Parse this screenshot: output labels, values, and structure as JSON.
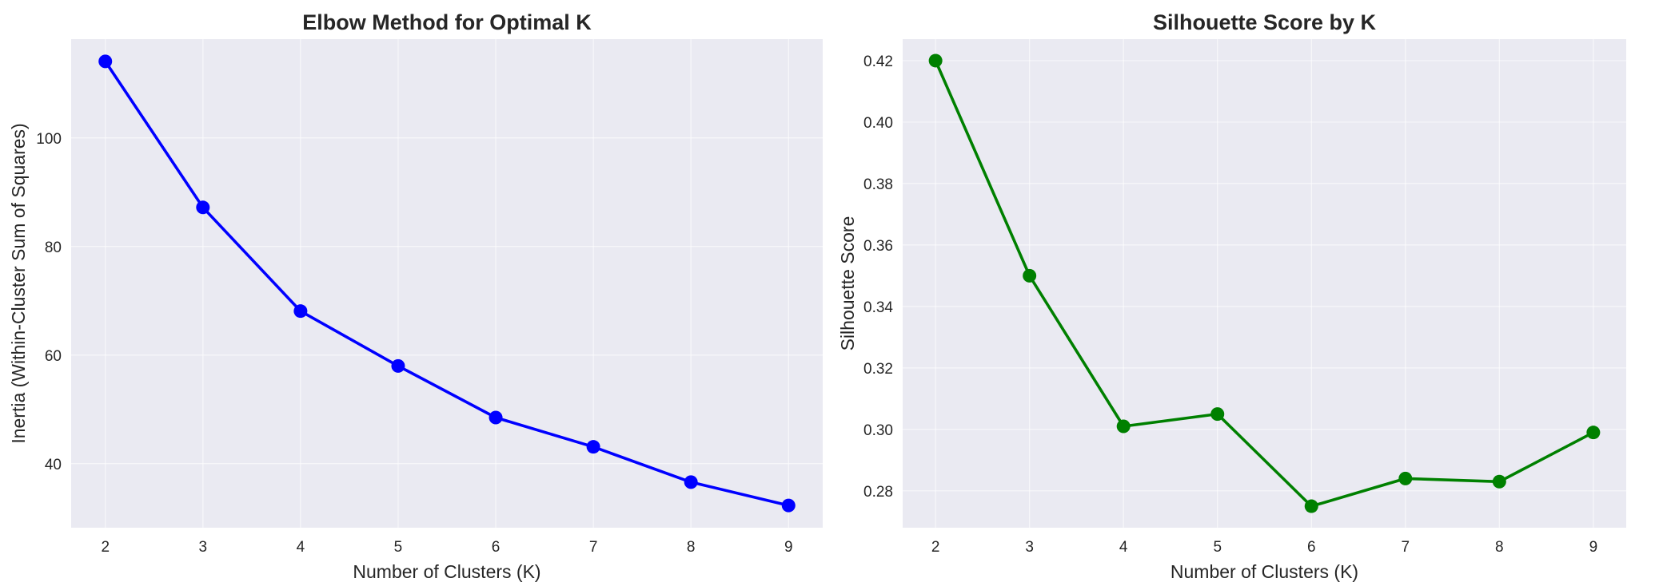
{
  "chart_data": [
    {
      "type": "line",
      "title": "Elbow Method for Optimal K",
      "xlabel": "Number of Clusters (K)",
      "ylabel": "Inertia (Within-Cluster Sum of Squares)",
      "x": [
        2,
        3,
        4,
        5,
        6,
        7,
        8,
        9
      ],
      "series": [
        {
          "values": [
            114.1,
            87.2,
            68.1,
            58.0,
            48.5,
            43.1,
            36.6,
            32.3
          ],
          "color": "#0000ff",
          "marker": "circle"
        }
      ],
      "xticks": [
        2,
        3,
        4,
        5,
        6,
        7,
        8,
        9
      ],
      "yticks": [
        40,
        60,
        80,
        100
      ],
      "xlim": [
        1.65,
        9.35
      ],
      "ylim": [
        28.2,
        118.2
      ],
      "grid": true,
      "legend": false
    },
    {
      "type": "line",
      "title": "Silhouette Score by K",
      "xlabel": "Number of Clusters (K)",
      "ylabel": "Silhouette Score",
      "x": [
        2,
        3,
        4,
        5,
        6,
        7,
        8,
        9
      ],
      "series": [
        {
          "values": [
            0.42,
            0.35,
            0.301,
            0.305,
            0.275,
            0.284,
            0.283,
            0.299
          ],
          "color": "#008000",
          "marker": "circle"
        }
      ],
      "xticks": [
        2,
        3,
        4,
        5,
        6,
        7,
        8,
        9
      ],
      "yticks": [
        0.28,
        0.3,
        0.32,
        0.34,
        0.36,
        0.38,
        0.4,
        0.42
      ],
      "yticks_labels": [
        "0.28",
        "0.30",
        "0.32",
        "0.34",
        "0.36",
        "0.38",
        "0.40",
        "0.42"
      ],
      "xlim": [
        1.65,
        9.35
      ],
      "ylim": [
        0.268,
        0.427
      ],
      "grid": true,
      "legend": false
    }
  ]
}
